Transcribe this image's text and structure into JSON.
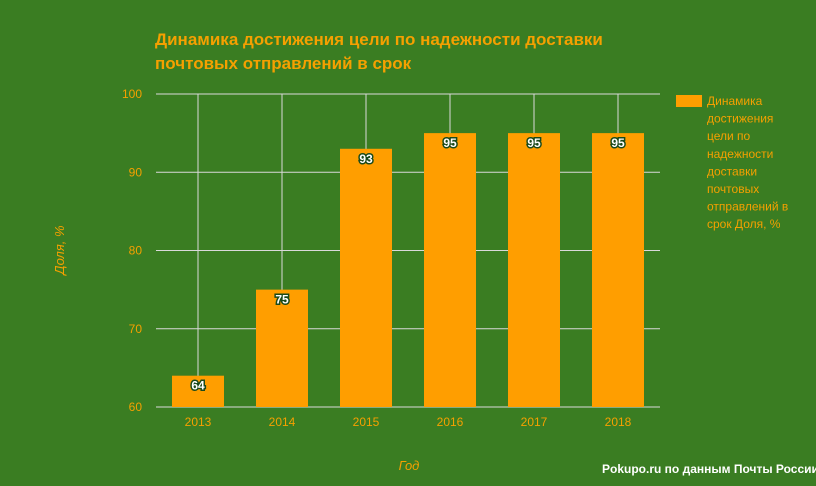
{
  "colors": {
    "background": "#3a7d22",
    "accent": "#f5a000",
    "bar": "#ff9e00",
    "grid": "#d9d9d9"
  },
  "chart_data": {
    "type": "bar",
    "title_lines": [
      "Динамика достижения цели по надежности доставки",
      "почтовых отправлений в срок"
    ],
    "xlabel": "Год",
    "ylabel": "Доля, %",
    "categories": [
      "2013",
      "2014",
      "2015",
      "2016",
      "2017",
      "2018"
    ],
    "series": [
      {
        "name_lines": [
          "Динамика",
          "достижения",
          "цели по",
          "надежности",
          "доставки",
          "почтовых",
          "отправлений в",
          "срок Доля, %"
        ],
        "values": [
          64,
          75,
          93,
          95,
          95,
          95
        ]
      }
    ],
    "yticks": [
      "60",
      "70",
      "80",
      "90",
      "100"
    ],
    "ylim": [
      60,
      100
    ],
    "grid": true,
    "legend": "right"
  },
  "source": "Pokupo.ru по данным Почты России"
}
